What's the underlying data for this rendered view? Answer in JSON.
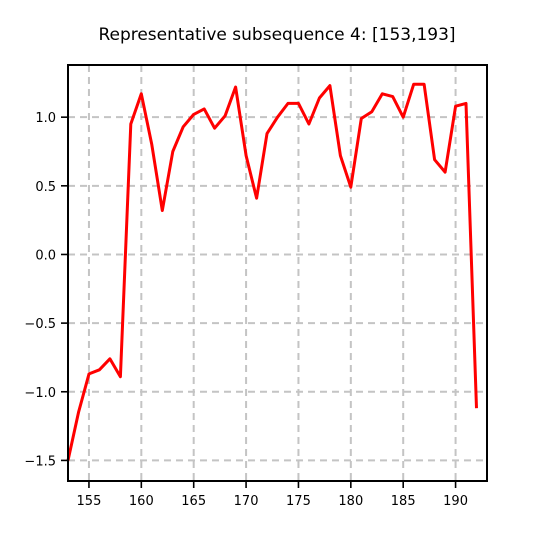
{
  "chart_data": {
    "type": "line",
    "title": "Representative subsequence 4: [153,193]",
    "xlabel": "",
    "ylabel": "",
    "xlim": [
      153,
      193
    ],
    "ylim": [
      -1.65,
      1.38
    ],
    "grid": true,
    "grid_style": "dashed",
    "xticks": [
      155,
      160,
      165,
      170,
      175,
      180,
      185,
      190
    ],
    "yticks": [
      1.0,
      0.5,
      0.0,
      -0.5,
      -1.0,
      -1.5
    ],
    "xtick_labels": [
      "155",
      "160",
      "165",
      "170",
      "175",
      "180",
      "185",
      "190"
    ],
    "ytick_labels": [
      "1.0",
      "0.5",
      "0.0",
      "−0.5",
      "−1.0",
      "−1.5"
    ],
    "series": [
      {
        "color": "#ff0000",
        "x": [
          153,
          154,
          155,
          156,
          157,
          158,
          159,
          160,
          161,
          162,
          163,
          164,
          165,
          166,
          167,
          168,
          169,
          170,
          171,
          172,
          173,
          174,
          175,
          176,
          177,
          178,
          179,
          180,
          181,
          182,
          183,
          184,
          185,
          186,
          187,
          188,
          189,
          190,
          191,
          192
        ],
        "y": [
          -1.5,
          -1.15,
          -0.87,
          -0.84,
          -0.76,
          -0.89,
          0.95,
          1.17,
          0.8,
          0.32,
          0.75,
          0.93,
          1.02,
          1.06,
          0.92,
          1.01,
          1.22,
          0.72,
          0.41,
          0.88,
          1.0,
          1.1,
          1.1,
          0.95,
          1.14,
          1.23,
          0.72,
          0.49,
          0.99,
          1.04,
          1.17,
          1.15,
          1.0,
          1.24,
          1.24,
          0.69,
          0.6,
          1.08,
          1.1,
          -1.12
        ]
      }
    ]
  }
}
